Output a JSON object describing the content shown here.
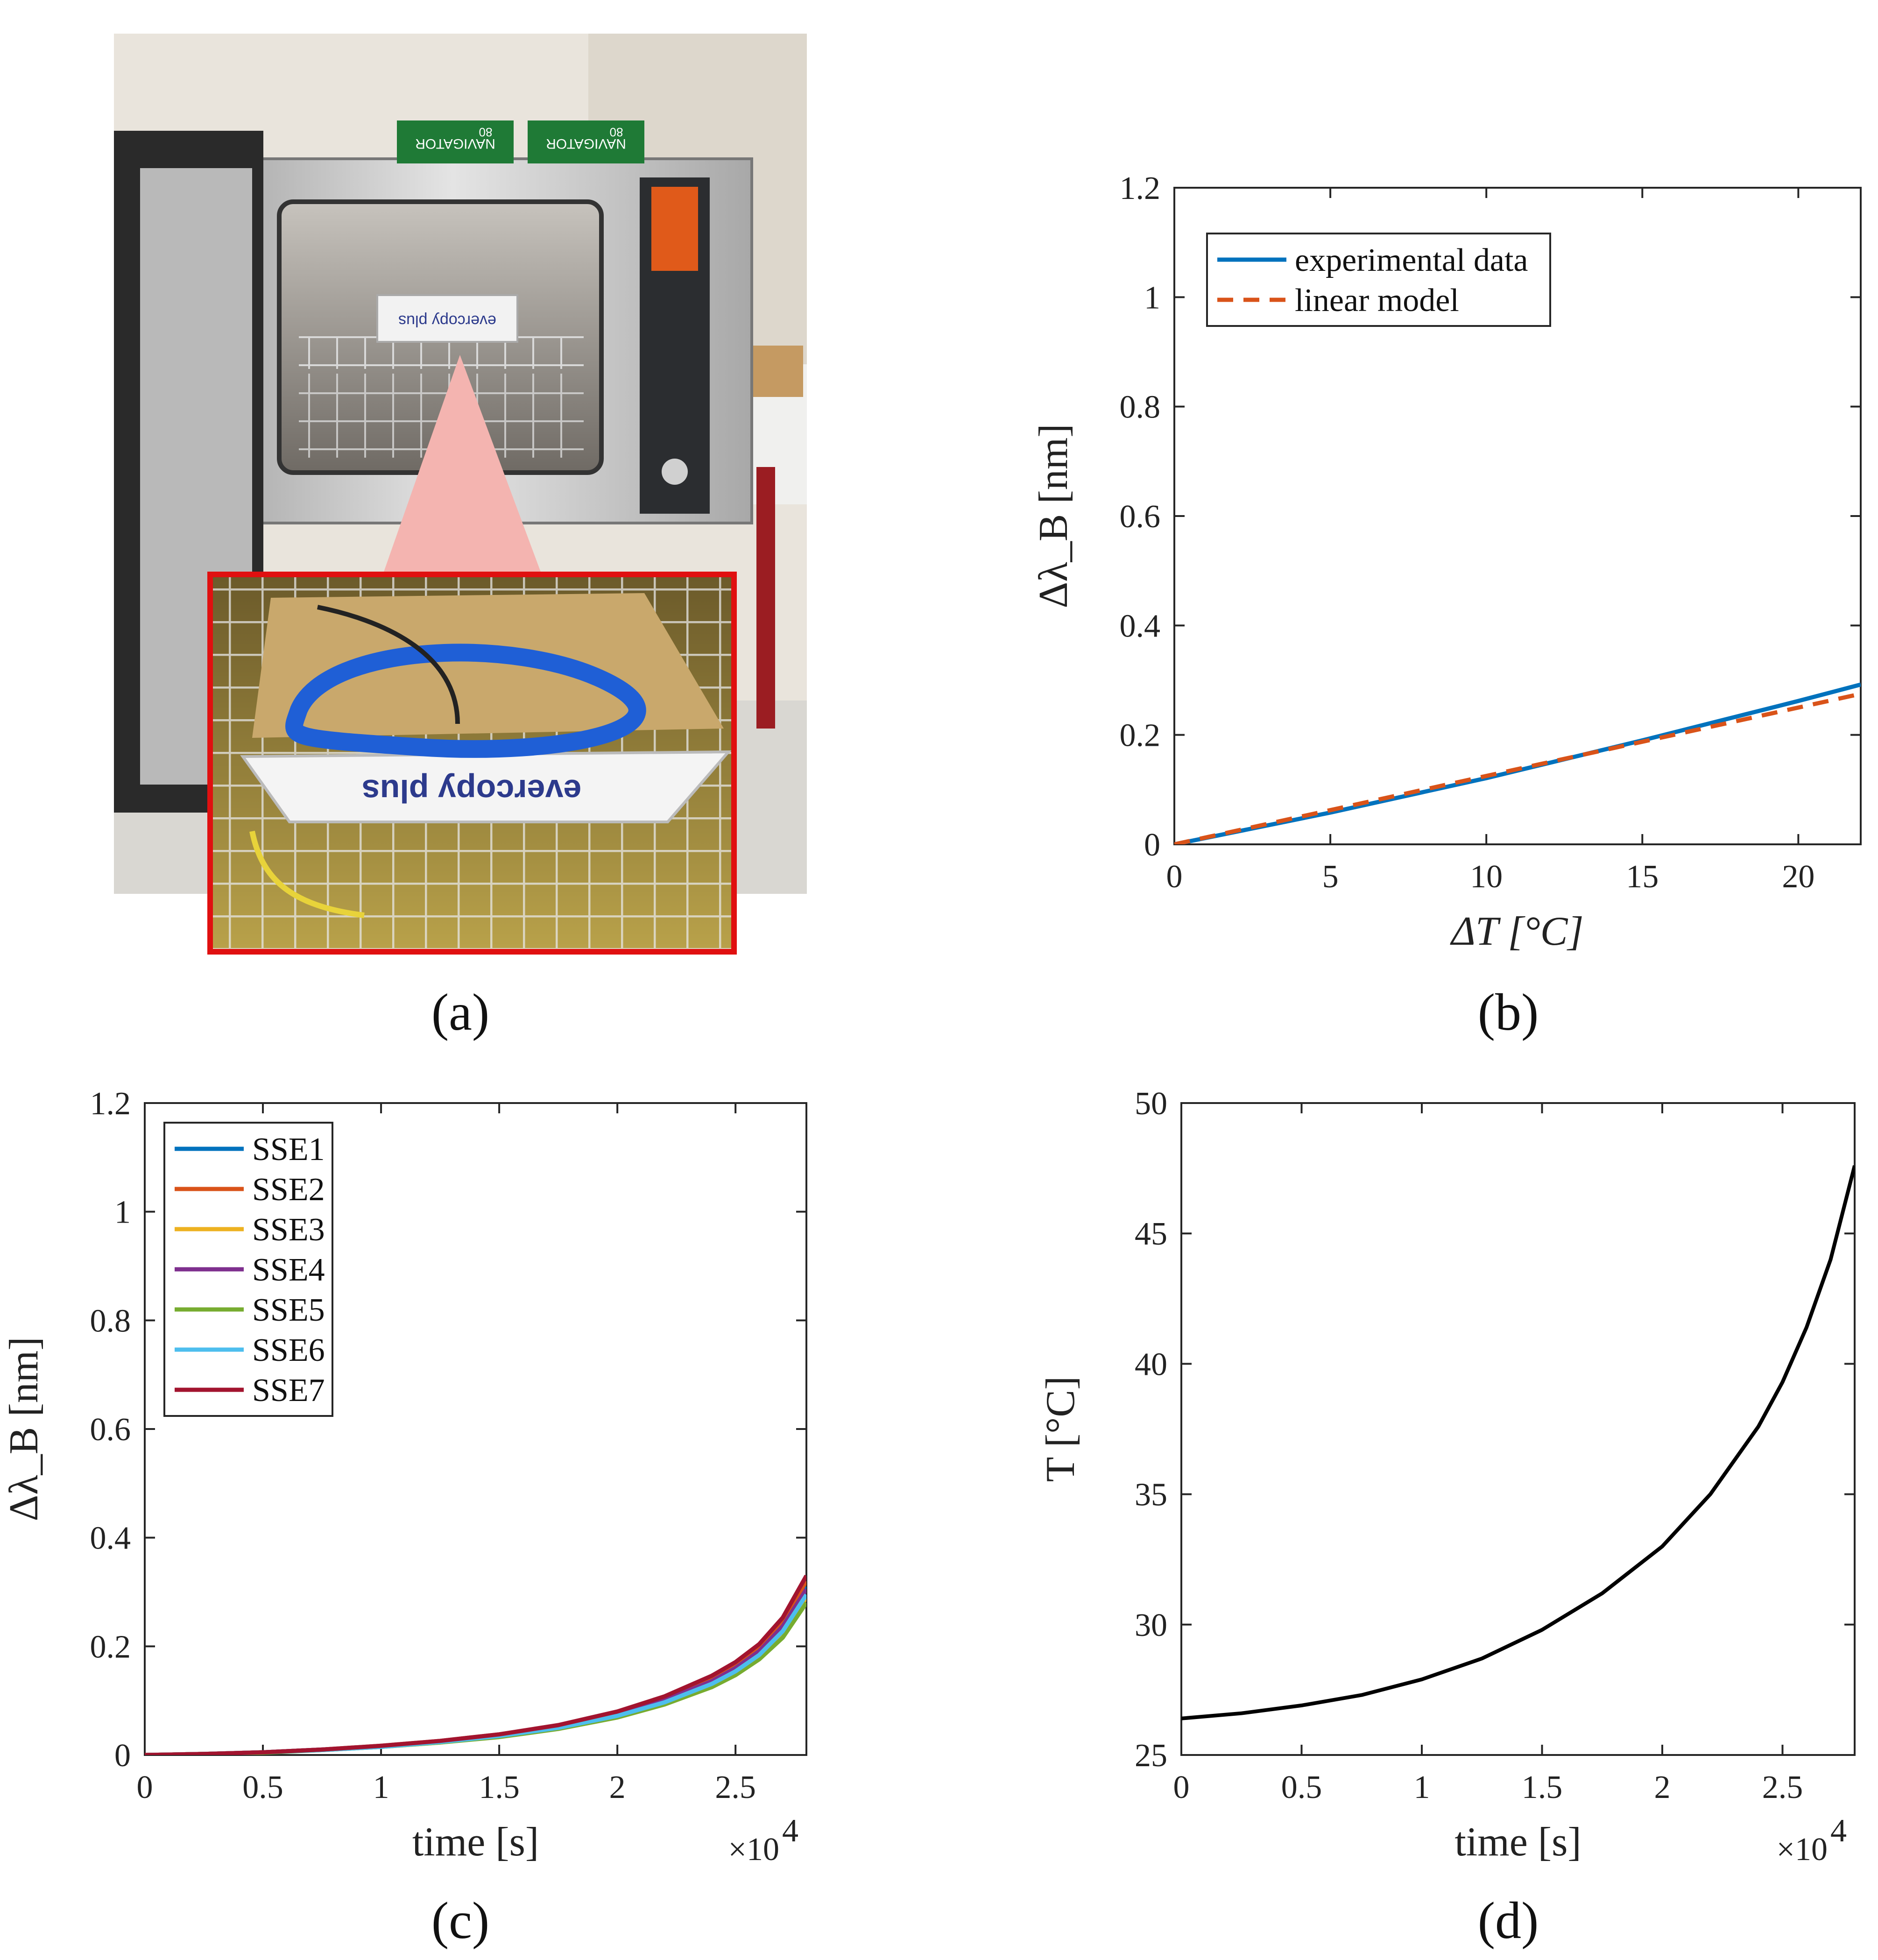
{
  "panels": {
    "a": {
      "caption": "(a)",
      "photo_box_text": "evercopy plus",
      "inset_box_text": "evercopy plus",
      "paper_label_1": "NAVIGATOR",
      "paper_label_2": "NAVIGATOR",
      "paper_count_1": "80",
      "paper_count_2": "80",
      "inset_border_color": "#e01010",
      "callout_color": "#f4b4b0"
    },
    "b": {
      "caption": "(b)"
    },
    "c": {
      "caption": "(c)"
    },
    "d": {
      "caption": "(d)"
    }
  },
  "chart_data": [
    {
      "panel": "b",
      "type": "line",
      "xlabel": "ΔT [°C]",
      "ylabel": "Δλ_B [nm]",
      "xlim": [
        0,
        22
      ],
      "ylim": [
        0,
        1.2
      ],
      "xticks": [
        "0",
        "5",
        "10",
        "15",
        "20"
      ],
      "yticks": [
        "0",
        "0.2",
        "0.4",
        "0.6",
        "0.8",
        "1",
        "1.2"
      ],
      "grid": false,
      "legend_position": "top-left",
      "series": [
        {
          "name": "experimental data",
          "style": "solid",
          "color": "#0072BD",
          "x": [
            0,
            5,
            10,
            15,
            20,
            22
          ],
          "y": [
            0,
            0.058,
            0.121,
            0.19,
            0.262,
            0.292
          ]
        },
        {
          "name": "linear model",
          "style": "dashed",
          "color": "#D95319",
          "x": [
            0,
            22
          ],
          "y": [
            0,
            0.275
          ]
        }
      ]
    },
    {
      "panel": "c",
      "type": "line",
      "xlabel": "time [s]",
      "ylabel": "Δλ_B [nm]",
      "xlim": [
        0,
        2.8
      ],
      "ylim": [
        0,
        1.2
      ],
      "xscale_label": "×10",
      "xscale_exponent": "4",
      "xticks": [
        "0",
        "0.5",
        "1",
        "1.5",
        "2",
        "2.5"
      ],
      "yticks": [
        "0",
        "0.2",
        "0.4",
        "0.6",
        "0.8",
        "1",
        "1.2"
      ],
      "grid": false,
      "legend_position": "top-left",
      "x": [
        0,
        0.25,
        0.5,
        0.75,
        1.0,
        1.25,
        1.5,
        1.75,
        2.0,
        2.2,
        2.4,
        2.5,
        2.6,
        2.7,
        2.8
      ],
      "series": [
        {
          "name": "SSE1",
          "color": "#0072BD",
          "y": [
            0,
            0.002,
            0.005,
            0.01,
            0.016,
            0.025,
            0.036,
            0.052,
            0.076,
            0.102,
            0.138,
            0.162,
            0.194,
            0.24,
            0.31
          ]
        },
        {
          "name": "SSE2",
          "color": "#D95319",
          "y": [
            0,
            0.002,
            0.005,
            0.01,
            0.017,
            0.026,
            0.038,
            0.054,
            0.079,
            0.106,
            0.143,
            0.168,
            0.2,
            0.248,
            0.32
          ]
        },
        {
          "name": "SSE3",
          "color": "#EDB120",
          "y": [
            0,
            0.002,
            0.005,
            0.009,
            0.015,
            0.023,
            0.034,
            0.049,
            0.071,
            0.095,
            0.128,
            0.15,
            0.18,
            0.222,
            0.29
          ]
        },
        {
          "name": "SSE4",
          "color": "#7E2F8E",
          "y": [
            0,
            0.002,
            0.005,
            0.01,
            0.016,
            0.025,
            0.036,
            0.052,
            0.075,
            0.101,
            0.136,
            0.16,
            0.191,
            0.237,
            0.305
          ]
        },
        {
          "name": "SSE5",
          "color": "#77AC30",
          "y": [
            0,
            0.002,
            0.004,
            0.009,
            0.015,
            0.023,
            0.033,
            0.048,
            0.069,
            0.093,
            0.125,
            0.147,
            0.176,
            0.216,
            0.28
          ]
        },
        {
          "name": "SSE6",
          "color": "#4DBEEE",
          "y": [
            0,
            0.002,
            0.005,
            0.009,
            0.015,
            0.024,
            0.035,
            0.05,
            0.072,
            0.097,
            0.131,
            0.154,
            0.184,
            0.228,
            0.295
          ]
        },
        {
          "name": "SSE7",
          "color": "#A2142F",
          "y": [
            0,
            0.002,
            0.005,
            0.01,
            0.017,
            0.026,
            0.038,
            0.055,
            0.08,
            0.108,
            0.146,
            0.171,
            0.204,
            0.253,
            0.33
          ]
        }
      ]
    },
    {
      "panel": "d",
      "type": "line",
      "xlabel": "time [s]",
      "ylabel": "T [°C]",
      "xlim": [
        0,
        2.8
      ],
      "ylim": [
        25,
        50
      ],
      "xscale_label": "×10",
      "xscale_exponent": "4",
      "xticks": [
        "0",
        "0.5",
        "1",
        "1.5",
        "2",
        "2.5"
      ],
      "yticks": [
        "25",
        "30",
        "35",
        "40",
        "45",
        "50"
      ],
      "grid": false,
      "series": [
        {
          "name": "",
          "color": "#000000",
          "x": [
            0,
            0.25,
            0.5,
            0.75,
            1.0,
            1.25,
            1.5,
            1.75,
            2.0,
            2.2,
            2.4,
            2.5,
            2.6,
            2.7,
            2.8
          ],
          "y": [
            26.4,
            26.6,
            26.9,
            27.3,
            27.9,
            28.7,
            29.8,
            31.2,
            33.0,
            35.0,
            37.6,
            39.3,
            41.4,
            44.0,
            47.6
          ]
        }
      ]
    }
  ]
}
